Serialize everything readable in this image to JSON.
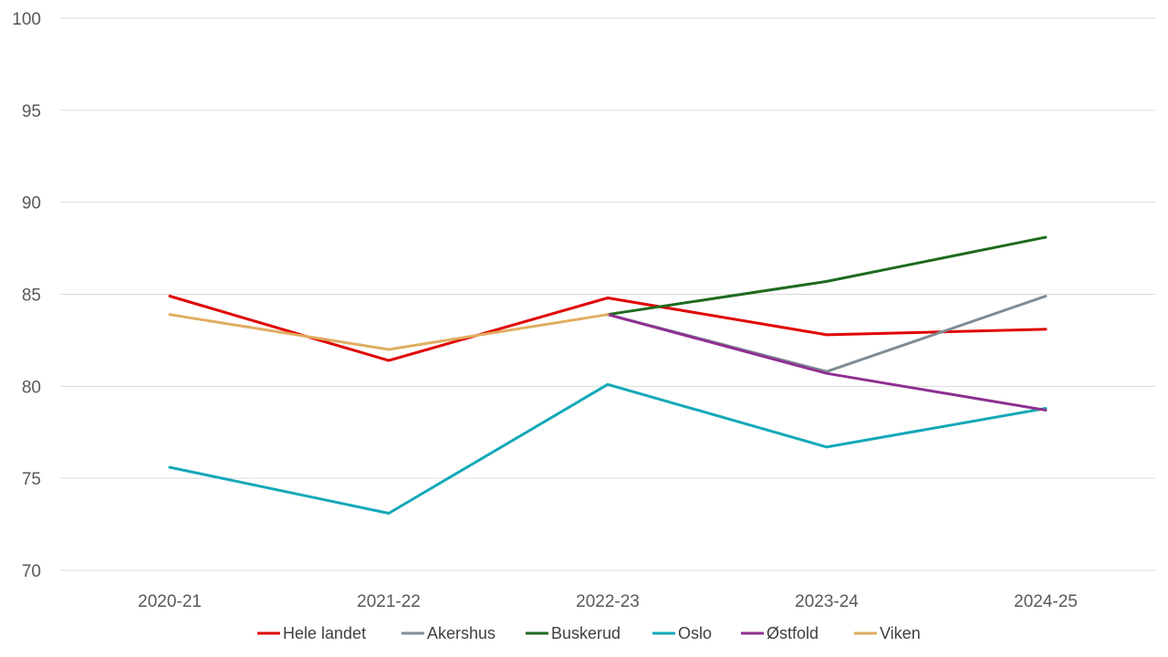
{
  "chart_data": {
    "type": "line",
    "categories": [
      "2020-21",
      "2021-22",
      "2022-23",
      "2023-24",
      "2024-25"
    ],
    "ylim": [
      70,
      100
    ],
    "yticks": [
      70,
      75,
      80,
      85,
      90,
      95,
      100
    ],
    "grid": true,
    "legend_position": "bottom",
    "series": [
      {
        "name": "Hele landet",
        "color": "#e00000",
        "values": [
          84.9,
          81.4,
          84.8,
          82.8,
          83.1
        ]
      },
      {
        "name": "Akershus",
        "color": "#7f8c95",
        "values": [
          null,
          null,
          83.9,
          80.8,
          84.9
        ]
      },
      {
        "name": "Buskerud",
        "color": "#1e6b1e",
        "values": [
          null,
          null,
          83.9,
          85.7,
          88.1
        ]
      },
      {
        "name": "Oslo",
        "color": "#13a8b8",
        "values": [
          75.6,
          73.1,
          80.1,
          76.7,
          78.8
        ]
      },
      {
        "name": "Østfold",
        "color": "#8f2f91",
        "values": [
          null,
          null,
          83.9,
          80.7,
          78.7
        ]
      },
      {
        "name": "Viken",
        "color": "#e0ad60",
        "values": [
          83.9,
          82.0,
          83.9,
          null,
          null
        ]
      }
    ]
  }
}
